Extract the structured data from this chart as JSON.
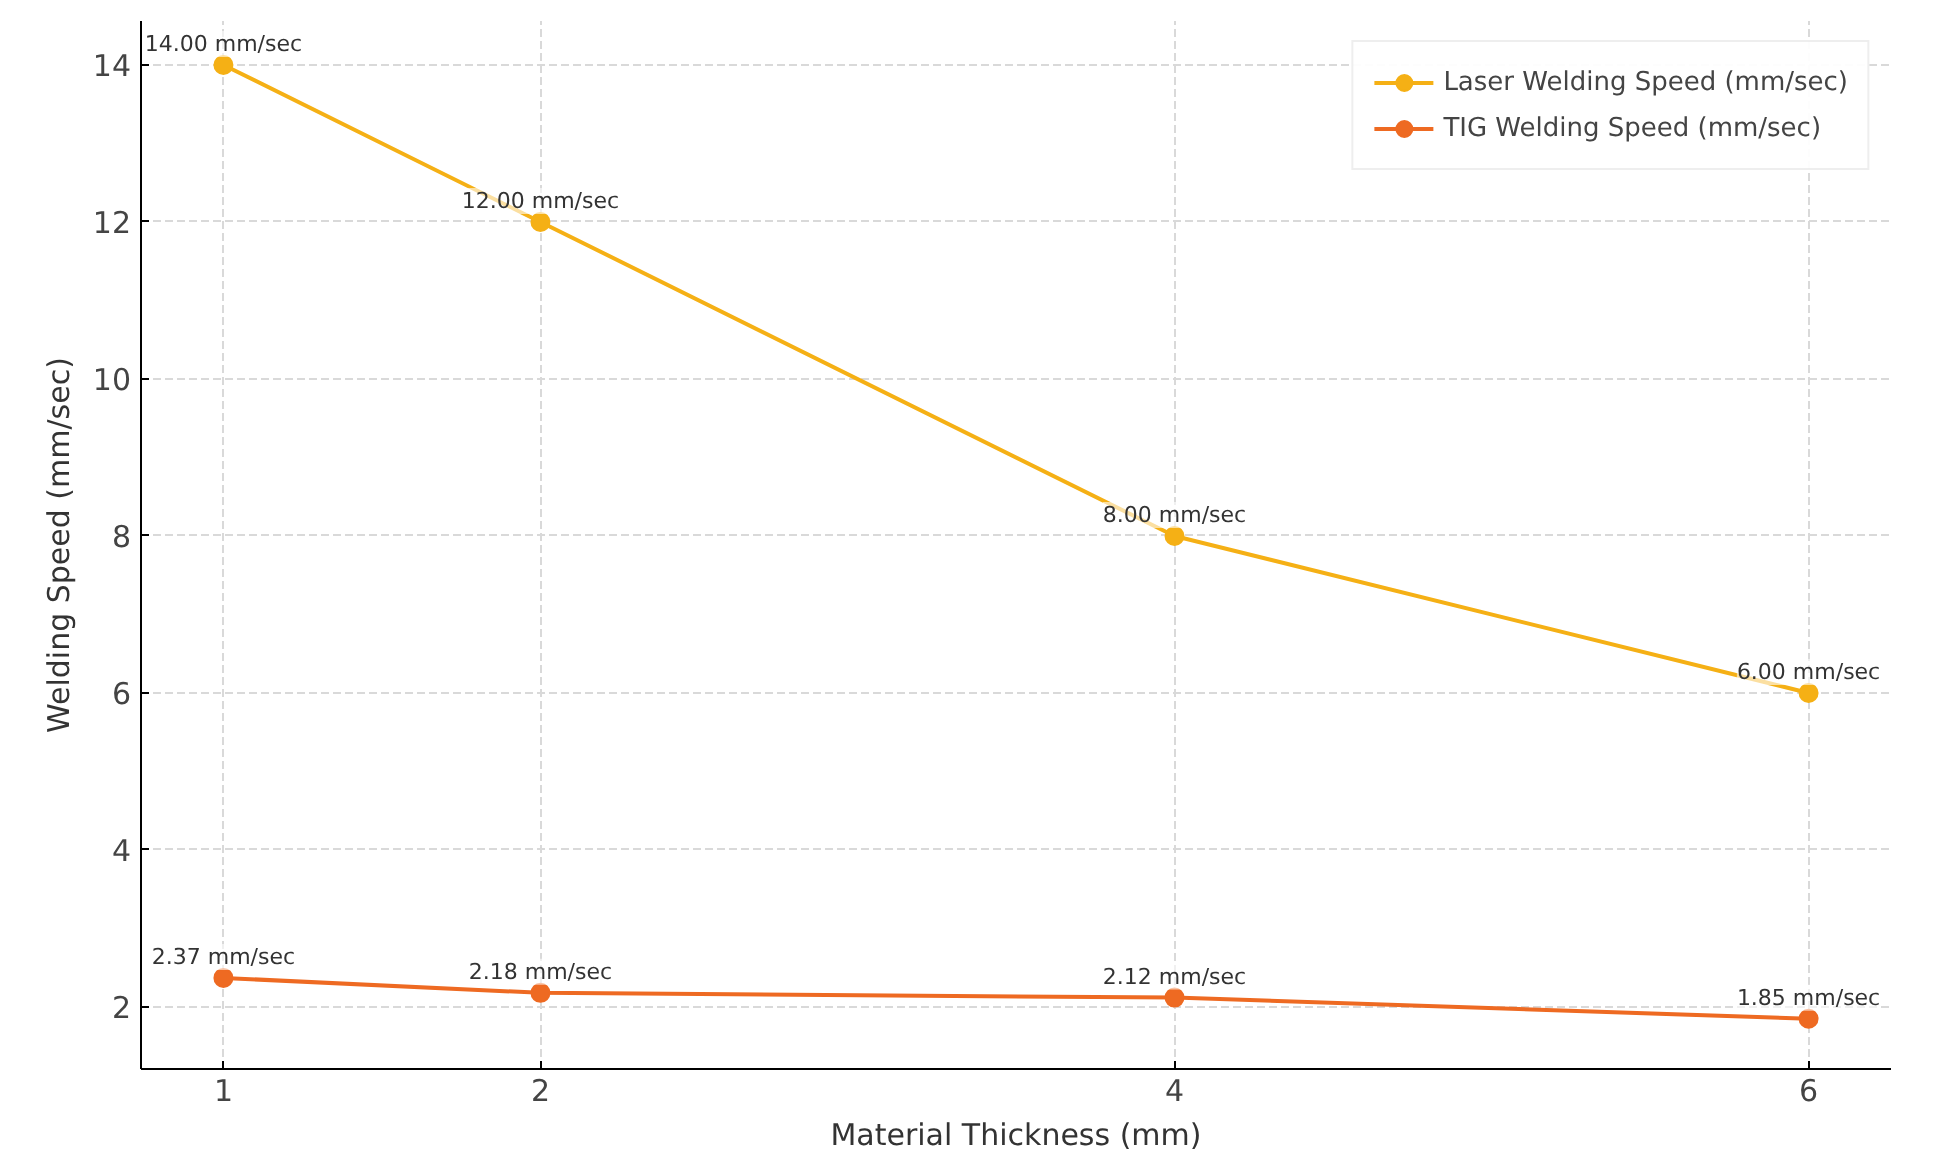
{
  "chart_data": {
    "type": "line",
    "xlabel": "Material Thickness (mm)",
    "ylabel": "Welding Speed (mm/sec)",
    "x": [
      1,
      2,
      4,
      6
    ],
    "series": [
      {
        "name": "Laser Welding Speed (mm/sec)",
        "color": "#f5b015",
        "values": [
          14,
          12,
          8,
          6
        ],
        "value_labels": [
          "14.00 mm/sec",
          "12.00 mm/sec",
          "8.00 mm/sec",
          "6.00 mm/sec"
        ]
      },
      {
        "name": "TIG Welding Speed (mm/sec)",
        "color": "#ee6a22",
        "values": [
          2.37,
          2.18,
          2.12,
          1.85
        ],
        "value_labels": [
          "2.37 mm/sec",
          "2.18 mm/sec",
          "2.12 mm/sec",
          "1.85 mm/sec"
        ]
      }
    ],
    "xlim": [
      0.74,
      6.26
    ],
    "ylim": [
      1.21,
      14.56
    ],
    "xticks": [
      1,
      2,
      4,
      6
    ],
    "yticks": [
      2,
      4,
      6,
      8,
      10,
      12,
      14
    ],
    "grid": true,
    "legend": "top right",
    "marker": "circle",
    "line_style": "solid"
  }
}
